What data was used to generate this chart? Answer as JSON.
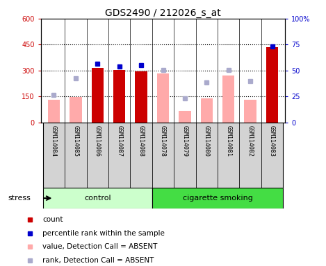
{
  "title": "GDS2490 / 212026_s_at",
  "samples": [
    "GSM114084",
    "GSM114085",
    "GSM114086",
    "GSM114087",
    "GSM114088",
    "GSM114078",
    "GSM114079",
    "GSM114080",
    "GSM114081",
    "GSM114082",
    "GSM114083"
  ],
  "red_bars": [
    null,
    null,
    315,
    305,
    295,
    null,
    null,
    null,
    null,
    null,
    435
  ],
  "pink_bars": [
    130,
    145,
    null,
    null,
    null,
    285,
    65,
    140,
    270,
    130,
    null
  ],
  "blue_squares_left": [
    null,
    null,
    340,
    325,
    330,
    null,
    null,
    null,
    null,
    null,
    440
  ],
  "lavender_squares_left": [
    160,
    255,
    null,
    null,
    null,
    305,
    140,
    230,
    305,
    240,
    null
  ],
  "ylim_left": [
    0,
    600
  ],
  "ylim_right": [
    0,
    100
  ],
  "yticks_left": [
    0,
    150,
    300,
    450,
    600
  ],
  "yticks_right": [
    0,
    25,
    50,
    75,
    100
  ],
  "ytick_labels_left": [
    "0",
    "150",
    "300",
    "450",
    "600"
  ],
  "ytick_labels_right": [
    "0",
    "25",
    "50",
    "75",
    "100%"
  ],
  "grid_values": [
    150,
    300,
    450
  ],
  "n_control": 5,
  "n_smoking": 6,
  "control_label": "control",
  "smoking_label": "cigarette smoking",
  "stress_label": "stress",
  "legend_labels": [
    "count",
    "percentile rank within the sample",
    "value, Detection Call = ABSENT",
    "rank, Detection Call = ABSENT"
  ],
  "legend_colors": [
    "#cc0000",
    "#0000cc",
    "#ffaaaa",
    "#aaaacc"
  ],
  "bar_width": 0.55,
  "red_color": "#cc0000",
  "pink_color": "#ffaaaa",
  "blue_color": "#0000cc",
  "lavender_color": "#aaaacc",
  "control_bg": "#ccffcc",
  "smoking_bg": "#44dd44",
  "tick_bg": "#d3d3d3",
  "right_ytick_labels": [
    "0",
    "25",
    "50",
    "75",
    "100%"
  ]
}
